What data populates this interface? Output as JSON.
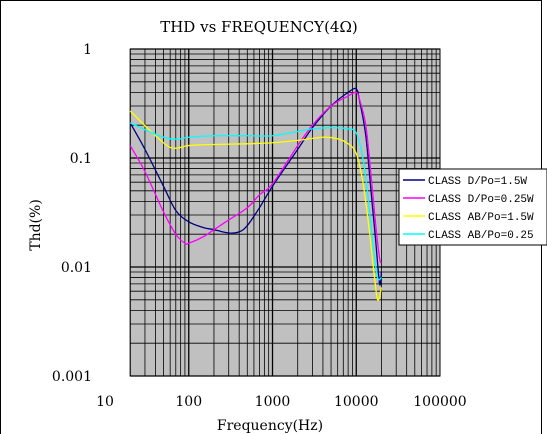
{
  "chart_data": {
    "type": "line",
    "title": "THD vs FREQUENCY(4Ω)",
    "xlabel": "Frequency(Hz)",
    "ylabel": "Thd(%)",
    "x_scale": "log",
    "y_scale": "log",
    "xlim": [
      20,
      100000
    ],
    "ylim": [
      0.001,
      1
    ],
    "x_ticks": [
      10,
      100,
      1000,
      10000,
      100000
    ],
    "x_tick_labels": [
      "10",
      "100",
      "1000",
      "10000",
      "100000"
    ],
    "y_ticks": [
      1,
      0.1,
      0.01,
      0.001
    ],
    "y_tick_labels": [
      "1",
      "0.1",
      "0.01",
      "0.001"
    ],
    "grid": true,
    "plot_background": "#c0c0c0",
    "legend_position": "right",
    "series": [
      {
        "name": "CLASS D/Po=1.5W",
        "color": "#000080",
        "points": [
          [
            20,
            0.21
          ],
          [
            30,
            0.12
          ],
          [
            50,
            0.055
          ],
          [
            70,
            0.033
          ],
          [
            100,
            0.026
          ],
          [
            150,
            0.023
          ],
          [
            200,
            0.022
          ],
          [
            300,
            0.0205
          ],
          [
            400,
            0.021
          ],
          [
            500,
            0.024
          ],
          [
            700,
            0.035
          ],
          [
            1000,
            0.055
          ],
          [
            2000,
            0.12
          ],
          [
            3000,
            0.19
          ],
          [
            5000,
            0.3
          ],
          [
            8000,
            0.4
          ],
          [
            10000,
            0.43
          ],
          [
            11000,
            0.33
          ],
          [
            13000,
            0.16
          ],
          [
            15000,
            0.05
          ],
          [
            17000,
            0.018
          ],
          [
            19000,
            0.007
          ],
          [
            20000,
            0.009
          ]
        ]
      },
      {
        "name": "CLASS D/Po=0.25W",
        "color": "#ff00ff",
        "points": [
          [
            20,
            0.13
          ],
          [
            30,
            0.075
          ],
          [
            50,
            0.032
          ],
          [
            70,
            0.02
          ],
          [
            90,
            0.0165
          ],
          [
            100,
            0.0165
          ],
          [
            150,
            0.019
          ],
          [
            200,
            0.022
          ],
          [
            300,
            0.027
          ],
          [
            500,
            0.035
          ],
          [
            700,
            0.046
          ],
          [
            1000,
            0.058
          ],
          [
            2000,
            0.13
          ],
          [
            3000,
            0.2
          ],
          [
            5000,
            0.3
          ],
          [
            8000,
            0.37
          ],
          [
            10000,
            0.4
          ],
          [
            11000,
            0.34
          ],
          [
            13000,
            0.2
          ],
          [
            15000,
            0.07
          ],
          [
            17000,
            0.025
          ],
          [
            19000,
            0.012
          ],
          [
            20000,
            0.011
          ]
        ]
      },
      {
        "name": "CLASS AB/Po=1.5W",
        "color": "#ffff00",
        "points": [
          [
            20,
            0.27
          ],
          [
            40,
            0.16
          ],
          [
            60,
            0.125
          ],
          [
            80,
            0.125
          ],
          [
            100,
            0.13
          ],
          [
            200,
            0.133
          ],
          [
            500,
            0.135
          ],
          [
            1000,
            0.138
          ],
          [
            2000,
            0.145
          ],
          [
            4000,
            0.155
          ],
          [
            6000,
            0.15
          ],
          [
            8000,
            0.135
          ],
          [
            10000,
            0.11
          ],
          [
            12000,
            0.06
          ],
          [
            14000,
            0.025
          ],
          [
            16000,
            0.01
          ],
          [
            18000,
            0.005
          ],
          [
            20000,
            0.0065
          ]
        ]
      },
      {
        "name": "CLASS AB/Po=0.25",
        "color": "#00ffff",
        "points": [
          [
            20,
            0.21
          ],
          [
            40,
            0.165
          ],
          [
            60,
            0.15
          ],
          [
            80,
            0.15
          ],
          [
            100,
            0.155
          ],
          [
            200,
            0.16
          ],
          [
            500,
            0.16
          ],
          [
            1000,
            0.16
          ],
          [
            2000,
            0.175
          ],
          [
            3000,
            0.185
          ],
          [
            5000,
            0.19
          ],
          [
            8000,
            0.185
          ],
          [
            10000,
            0.17
          ],
          [
            12000,
            0.1
          ],
          [
            14000,
            0.04
          ],
          [
            16000,
            0.015
          ],
          [
            18000,
            0.008
          ],
          [
            20000,
            0.008
          ]
        ]
      }
    ]
  }
}
